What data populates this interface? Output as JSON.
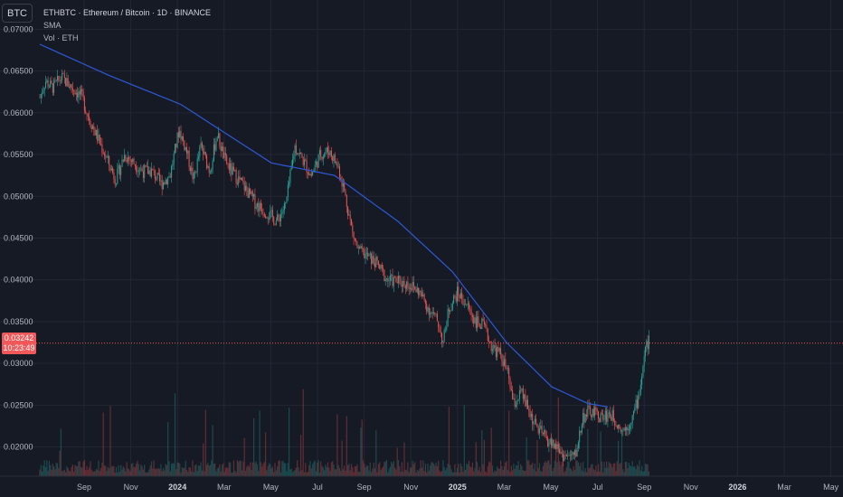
{
  "symbol_button": "BTC",
  "legend": {
    "title": "ETHBTC · Ethereum / Bitcoin · 1D · BINANCE",
    "sma_label": "SMA",
    "vol_label": "Vol · ETH"
  },
  "price_tag": {
    "price": "0.03242",
    "countdown": "10:23:49"
  },
  "colors": {
    "background": "#161a25",
    "grid": "#232735",
    "up": "#26a69a",
    "down": "#ef5350",
    "sma": "#2f58d8",
    "text": "#b2b5be",
    "price_line": "#f0585a"
  },
  "chart_data": {
    "type": "candlestick",
    "ylim": [
      0.0165,
      0.0735
    ],
    "y_ticks": [
      "0.07000",
      "0.06500",
      "0.06000",
      "0.05500",
      "0.05000",
      "0.04500",
      "0.04000",
      "0.03500",
      "0.03000",
      "0.02500",
      "0.02000"
    ],
    "x_ticks": [
      "Sep",
      "Nov",
      "2024",
      "Mar",
      "May",
      "Jul",
      "Sep",
      "Nov",
      "2025",
      "Mar",
      "May",
      "Jul",
      "Sep",
      "Nov",
      "2026",
      "Mar",
      "May"
    ],
    "last_price": 0.03242,
    "price_keypoints": [
      [
        0,
        0.0618
      ],
      [
        6,
        0.0638
      ],
      [
        14,
        0.063
      ],
      [
        24,
        0.0642
      ],
      [
        36,
        0.063
      ],
      [
        46,
        0.062
      ],
      [
        54,
        0.0595
      ],
      [
        64,
        0.057
      ],
      [
        74,
        0.0545
      ],
      [
        84,
        0.052
      ],
      [
        94,
        0.055
      ],
      [
        104,
        0.054
      ],
      [
        114,
        0.053
      ],
      [
        124,
        0.053
      ],
      [
        134,
        0.0515
      ],
      [
        144,
        0.0525
      ],
      [
        154,
        0.058
      ],
      [
        162,
        0.0555
      ],
      [
        170,
        0.052
      ],
      [
        178,
        0.056
      ],
      [
        188,
        0.053
      ],
      [
        196,
        0.0575
      ],
      [
        204,
        0.0545
      ],
      [
        212,
        0.053
      ],
      [
        220,
        0.052
      ],
      [
        230,
        0.0505
      ],
      [
        240,
        0.049
      ],
      [
        252,
        0.048
      ],
      [
        262,
        0.047
      ],
      [
        272,
        0.049
      ],
      [
        282,
        0.056
      ],
      [
        290,
        0.0545
      ],
      [
        300,
        0.0525
      ],
      [
        310,
        0.055
      ],
      [
        320,
        0.0555
      ],
      [
        330,
        0.0535
      ],
      [
        336,
        0.051
      ],
      [
        346,
        0.0455
      ],
      [
        352,
        0.0435
      ],
      [
        360,
        0.043
      ],
      [
        372,
        0.042
      ],
      [
        384,
        0.04
      ],
      [
        396,
        0.0398
      ],
      [
        408,
        0.0395
      ],
      [
        420,
        0.0385
      ],
      [
        430,
        0.0365
      ],
      [
        440,
        0.035
      ],
      [
        446,
        0.0325
      ],
      [
        452,
        0.0365
      ],
      [
        462,
        0.0385
      ],
      [
        472,
        0.037
      ],
      [
        482,
        0.035
      ],
      [
        490,
        0.0345
      ],
      [
        500,
        0.032
      ],
      [
        510,
        0.031
      ],
      [
        518,
        0.0285
      ],
      [
        524,
        0.025
      ],
      [
        532,
        0.0265
      ],
      [
        540,
        0.0245
      ],
      [
        548,
        0.0225
      ],
      [
        556,
        0.0215
      ],
      [
        564,
        0.0205
      ],
      [
        572,
        0.02
      ],
      [
        578,
        0.019
      ],
      [
        586,
        0.0188
      ],
      [
        592,
        0.019
      ],
      [
        596,
        0.021
      ],
      [
        600,
        0.0235
      ],
      [
        606,
        0.0242
      ],
      [
        614,
        0.024
      ],
      [
        622,
        0.0235
      ],
      [
        630,
        0.024
      ],
      [
        638,
        0.023
      ],
      [
        644,
        0.022
      ],
      [
        650,
        0.0225
      ],
      [
        656,
        0.0238
      ],
      [
        662,
        0.026
      ],
      [
        666,
        0.029
      ],
      [
        670,
        0.032
      ],
      [
        674,
        0.0328
      ]
    ],
    "sma_series": [
      [
        44,
        0.0682
      ],
      [
        120,
        0.0645
      ],
      [
        200,
        0.061
      ],
      [
        300,
        0.054
      ],
      [
        370,
        0.0525
      ],
      [
        440,
        0.047
      ],
      [
        500,
        0.041
      ],
      [
        560,
        0.0325
      ],
      [
        610,
        0.0272
      ],
      [
        650,
        0.0252
      ],
      [
        672,
        0.0248
      ]
    ]
  }
}
